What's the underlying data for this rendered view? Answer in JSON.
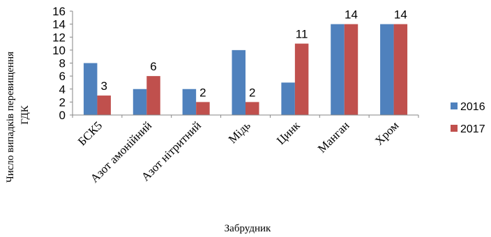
{
  "chart_data": {
    "type": "bar",
    "categories": [
      "БСК5",
      "Азот амонійний",
      "Азот нітритний",
      "Мідь",
      "Цинк",
      "Манган",
      "Хром"
    ],
    "series": [
      {
        "name": "2016",
        "values": [
          8,
          4,
          4,
          10,
          5,
          14,
          14
        ],
        "color": "#4F81BD"
      },
      {
        "name": "2017",
        "values": [
          3,
          6,
          2,
          2,
          11,
          14,
          14
        ],
        "color": "#C0504D"
      }
    ],
    "data_labels": {
      "series": "2017",
      "values": [
        3,
        6,
        2,
        2,
        11,
        14,
        14
      ]
    },
    "title": "",
    "xlabel": "Забрудник",
    "ylabel": "Число випадків перевищення ГДК",
    "ylim": [
      0,
      16
    ],
    "yticks": [
      0,
      2,
      4,
      6,
      8,
      10,
      12,
      14,
      16
    ],
    "grid": false,
    "legend_position": "right"
  }
}
